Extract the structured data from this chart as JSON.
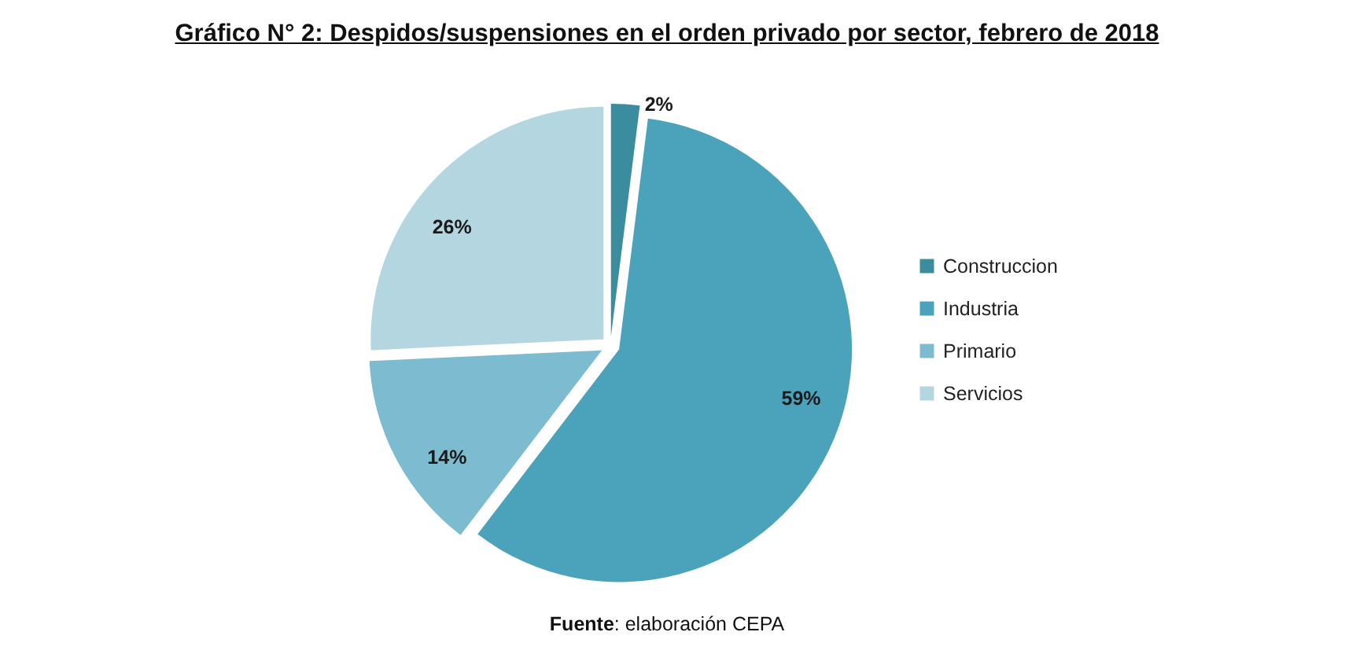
{
  "chart_data": {
    "type": "pie",
    "title": "Gráfico N° 2: Despidos/suspensiones en el orden privado por sector, febrero de 2018",
    "categories": [
      "Construccion",
      "Industria",
      "Primario",
      "Servicios"
    ],
    "values": [
      2,
      59,
      14,
      26
    ],
    "colors": [
      "#3a8c9e",
      "#4aa3bb",
      "#7dbcd0",
      "#b4d6e1"
    ],
    "value_labels": [
      "2%",
      "59%",
      "14%",
      "26%"
    ],
    "legend": "right",
    "annotations": [
      "Fuente: elaboración CEPA"
    ]
  }
}
